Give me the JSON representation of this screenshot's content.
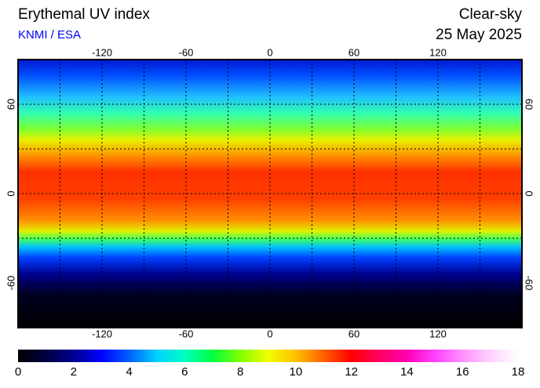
{
  "header": {
    "title": "Erythemal UV index",
    "source": "KNMI / ESA",
    "condition": "Clear-sky",
    "date": "25 May 2025"
  },
  "map": {
    "xlim": [
      -180,
      180
    ],
    "ylim": [
      -90,
      90
    ],
    "lon_ticks": [
      -120,
      -60,
      0,
      60,
      120
    ],
    "lat_ticks": [
      60,
      0,
      -60
    ],
    "grid_lon": [
      -150,
      -120,
      -90,
      -60,
      -30,
      0,
      30,
      60,
      90,
      120,
      150
    ],
    "grid_lat": [
      -60,
      -30,
      0,
      30,
      60
    ]
  },
  "colorbar": {
    "lim": [
      0,
      18
    ],
    "ticks": [
      0,
      2,
      4,
      6,
      8,
      10,
      12,
      14,
      16,
      18
    ],
    "colors": [
      "#000000",
      "#000040",
      "#000090",
      "#0000ff",
      "#0060ff",
      "#00d0ff",
      "#00ffc0",
      "#00ff40",
      "#80ff00",
      "#f0ff00",
      "#ffc000",
      "#ff6000",
      "#ff0000",
      "#ff0060",
      "#ff00b0",
      "#ff40ff",
      "#ff90ff",
      "#ffd0ff",
      "#ffffff"
    ]
  }
}
